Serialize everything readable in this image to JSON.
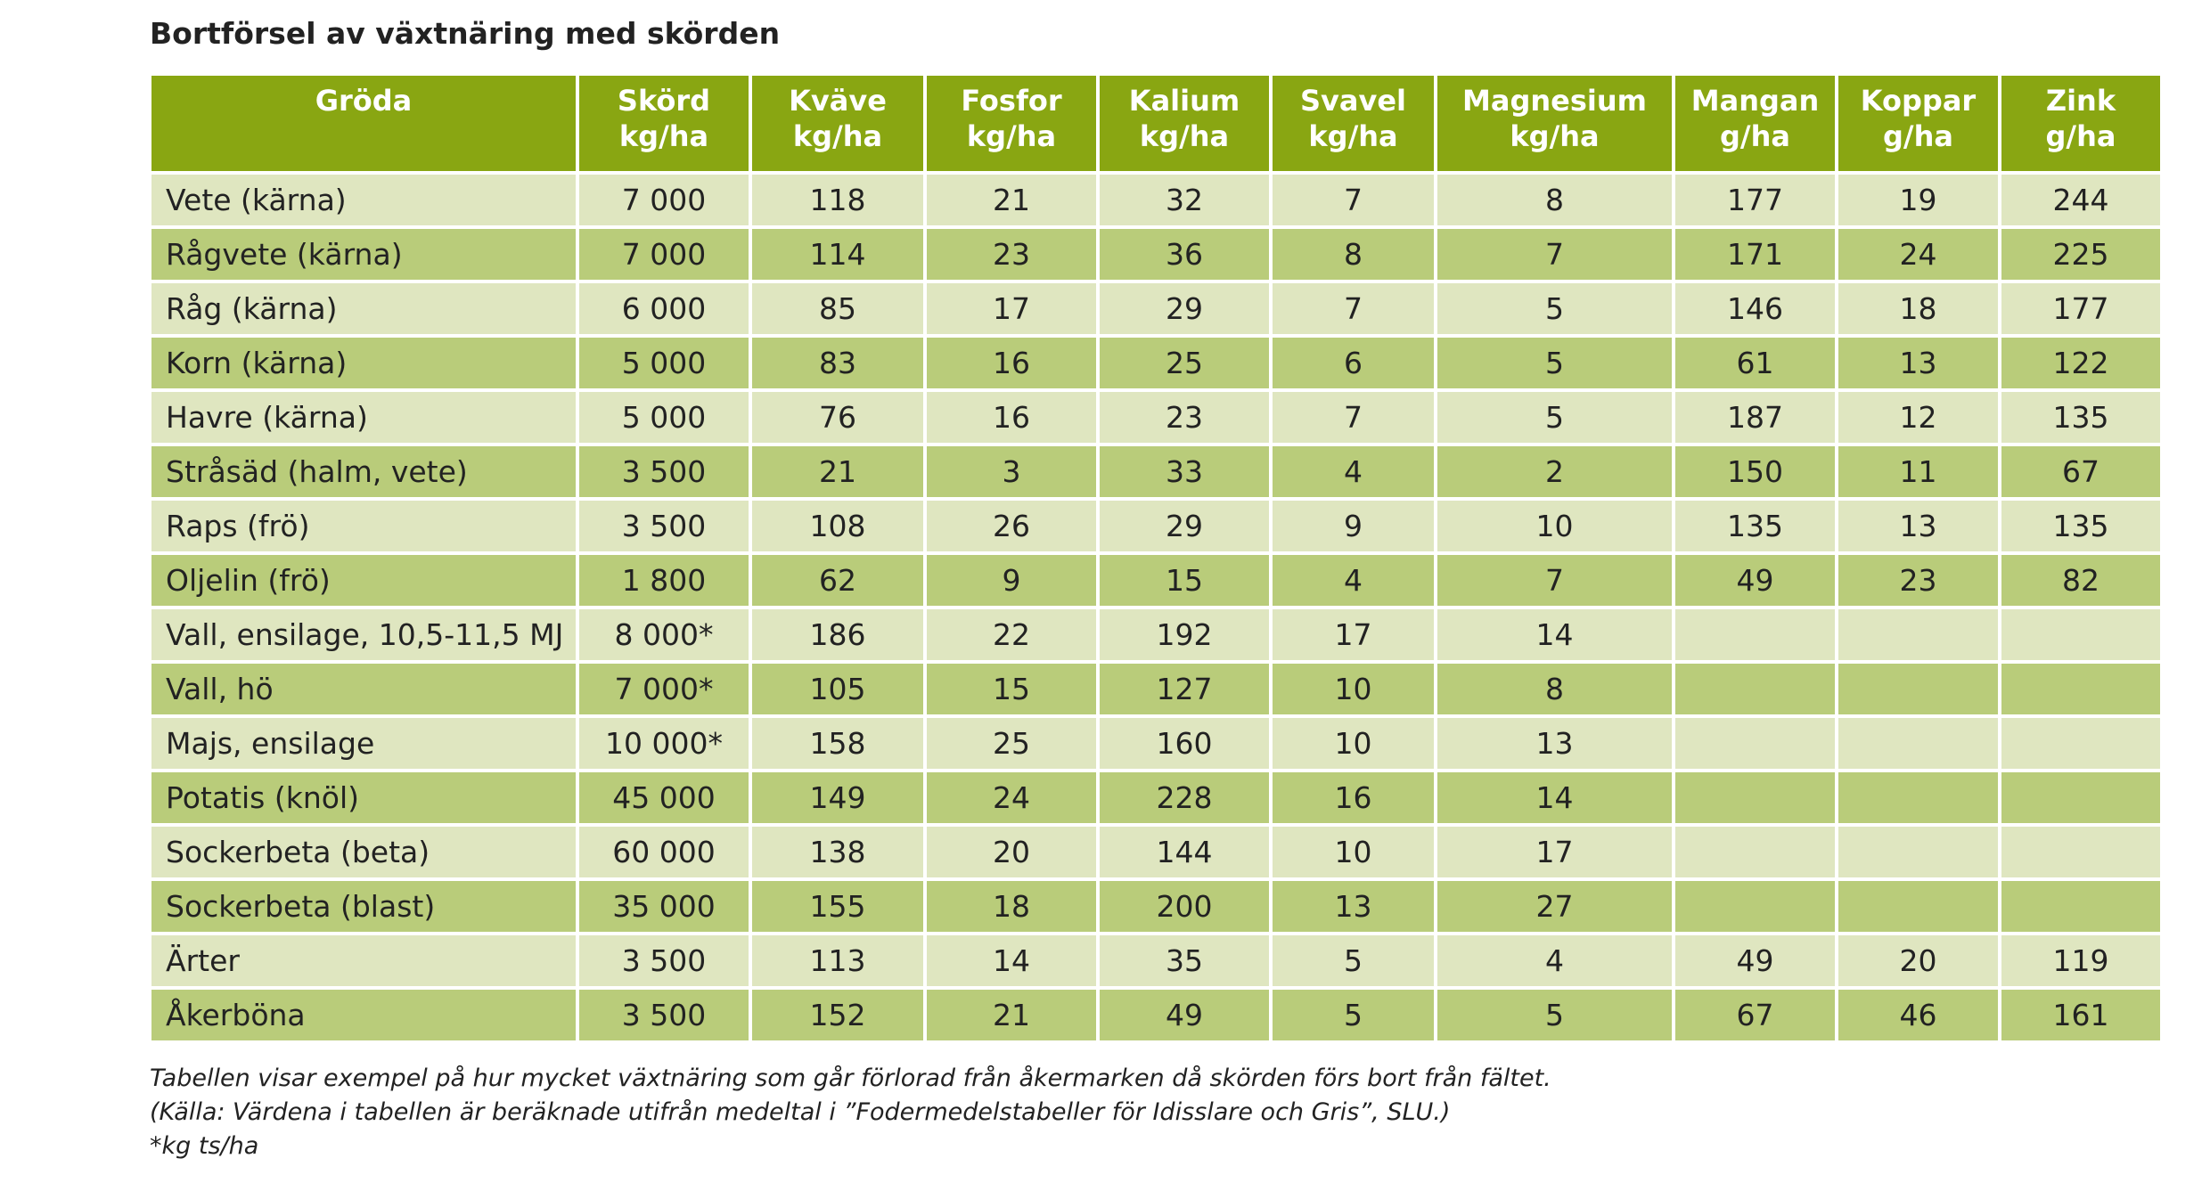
{
  "header": {
    "title": "Bortförsel av växtnäring med skörden"
  },
  "table": {
    "columns": [
      {
        "label": "Gröda"
      },
      {
        "label": "Skörd",
        "unit": "kg/ha"
      },
      {
        "label": "Kväve",
        "unit": "kg/ha"
      },
      {
        "label": "Fosfor",
        "unit": "kg/ha"
      },
      {
        "label": "Kalium",
        "unit": "kg/ha"
      },
      {
        "label": "Svavel",
        "unit": "kg/ha"
      },
      {
        "label": "Magnesium",
        "unit": "kg/ha"
      },
      {
        "label": "Mangan",
        "unit": "g/ha"
      },
      {
        "label": "Koppar",
        "unit": "g/ha"
      },
      {
        "label": "Zink",
        "unit": "g/ha"
      }
    ],
    "rows": [
      [
        "Vete (kärna)",
        "7 000",
        "118",
        "21",
        "32",
        "7",
        "8",
        "177",
        "19",
        "244"
      ],
      [
        "Rågvete (kärna)",
        "7 000",
        "114",
        "23",
        "36",
        "8",
        "7",
        "171",
        "24",
        "225"
      ],
      [
        "Råg (kärna)",
        "6 000",
        "85",
        "17",
        "29",
        "7",
        "5",
        "146",
        "18",
        "177"
      ],
      [
        "Korn (kärna)",
        "5 000",
        "83",
        "16",
        "25",
        "6",
        "5",
        "61",
        "13",
        "122"
      ],
      [
        "Havre (kärna)",
        "5 000",
        "76",
        "16",
        "23",
        "7",
        "5",
        "187",
        "12",
        "135"
      ],
      [
        "Stråsäd (halm, vete)",
        "3 500",
        "21",
        "3",
        "33",
        "4",
        "2",
        "150",
        "11",
        "67"
      ],
      [
        "Raps (frö)",
        "3 500",
        "108",
        "26",
        "29",
        "9",
        "10",
        "135",
        "13",
        "135"
      ],
      [
        "Oljelin (frö)",
        "1 800",
        "62",
        "9",
        "15",
        "4",
        "7",
        "49",
        "23",
        "82"
      ],
      [
        "Vall, ensilage, 10,5-11,5 MJ",
        "8 000*",
        "186",
        "22",
        "192",
        "17",
        "14",
        null,
        null,
        null
      ],
      [
        "Vall, hö",
        "7 000*",
        "105",
        "15",
        "127",
        "10",
        "8",
        null,
        null,
        null
      ],
      [
        "Majs, ensilage",
        "10 000*",
        "158",
        "25",
        "160",
        "10",
        "13",
        null,
        null,
        null
      ],
      [
        "Potatis (knöl)",
        "45 000",
        "149",
        "24",
        "228",
        "16",
        "14",
        null,
        null,
        null
      ],
      [
        "Sockerbeta (beta)",
        "60 000",
        "138",
        "20",
        "144",
        "10",
        "17",
        null,
        null,
        null
      ],
      [
        "Sockerbeta (blast)",
        "35 000",
        "155",
        "18",
        "200",
        "13",
        "27",
        null,
        null,
        null
      ],
      [
        "Ärter",
        "3 500",
        "113",
        "14",
        "35",
        "5",
        "4",
        "49",
        "20",
        "119"
      ],
      [
        "Åkerböna",
        "3 500",
        "152",
        "21",
        "49",
        "5",
        "5",
        "67",
        "46",
        "161"
      ]
    ]
  },
  "notes": [
    "Tabellen visar exempel på hur mycket växtnäring som går förlorad från åkermarken då skörden förs bort från fältet.",
    "(Källa: Värdena i tabellen är beräknade utifrån medeltal i ”Fodermedelstabeller för Idisslare och Gris”, SLU.)",
    "*kg ts/ha"
  ]
}
